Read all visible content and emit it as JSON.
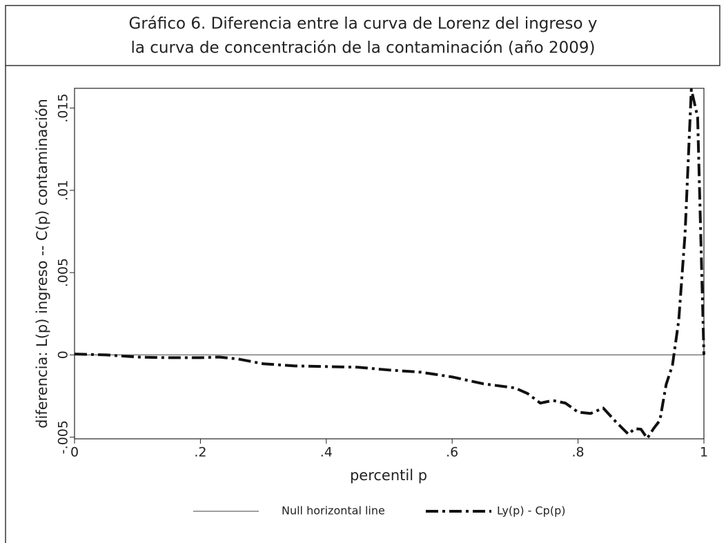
{
  "chart_data": {
    "type": "line",
    "title": [
      "Gráfico 6. Diferencia entre la curva de Lorenz del ingreso y",
      "la curva de concentración de la contaminación (año 2009)"
    ],
    "xlabel": "percentil p",
    "ylabel": "diferencia: L(p) ingreso -- C(p) contaminación",
    "xlim": [
      0,
      1
    ],
    "ylim": [
      -0.0051,
      0.0162
    ],
    "xticks": [
      0,
      {
        "value": 0.2,
        "label": ".2"
      },
      {
        "value": 0.4,
        "label": ".4"
      },
      {
        "value": 0.6,
        "label": ".6"
      },
      {
        "value": 0.8,
        "label": ".8"
      },
      1
    ],
    "yticks": [
      {
        "value": -0.005,
        "label": "-.005"
      },
      0,
      {
        "value": 0.005,
        "label": ".005"
      },
      {
        "value": 0.01,
        "label": ".01"
      },
      {
        "value": 0.015,
        "label": ".015"
      }
    ],
    "legend": "bottom",
    "series": [
      {
        "name": "Null horizontal line",
        "color": "#666666",
        "style": "solid",
        "x": [
          0,
          1
        ],
        "values": [
          0,
          0
        ]
      },
      {
        "name": "Ly(p) - Cp(p)",
        "color": "#111111",
        "style": "dashdot",
        "x": [
          0,
          0.05,
          0.1,
          0.15,
          0.2,
          0.23,
          0.26,
          0.3,
          0.35,
          0.4,
          0.45,
          0.5,
          0.55,
          0.6,
          0.65,
          0.7,
          0.72,
          0.74,
          0.76,
          0.78,
          0.8,
          0.82,
          0.84,
          0.86,
          0.88,
          0.89,
          0.9,
          0.91,
          0.92,
          0.93,
          0.94,
          0.95,
          0.96,
          0.97,
          0.98,
          0.99,
          1
        ],
        "values": [
          5e-05,
          0,
          -0.00013,
          -0.00017,
          -0.00017,
          -0.00013,
          -0.00025,
          -0.00054,
          -0.00067,
          -0.00071,
          -0.00075,
          -0.00092,
          -0.00105,
          -0.00134,
          -0.00176,
          -0.00201,
          -0.00235,
          -0.00293,
          -0.00277,
          -0.00293,
          -0.00348,
          -0.00356,
          -0.00323,
          -0.00406,
          -0.00482,
          -0.00448,
          -0.00452,
          -0.00507,
          -0.00448,
          -0.00398,
          -0.0018,
          -0.00063,
          0.0021,
          0.00733,
          0.01613,
          0.01446,
          0
        ]
      }
    ]
  }
}
